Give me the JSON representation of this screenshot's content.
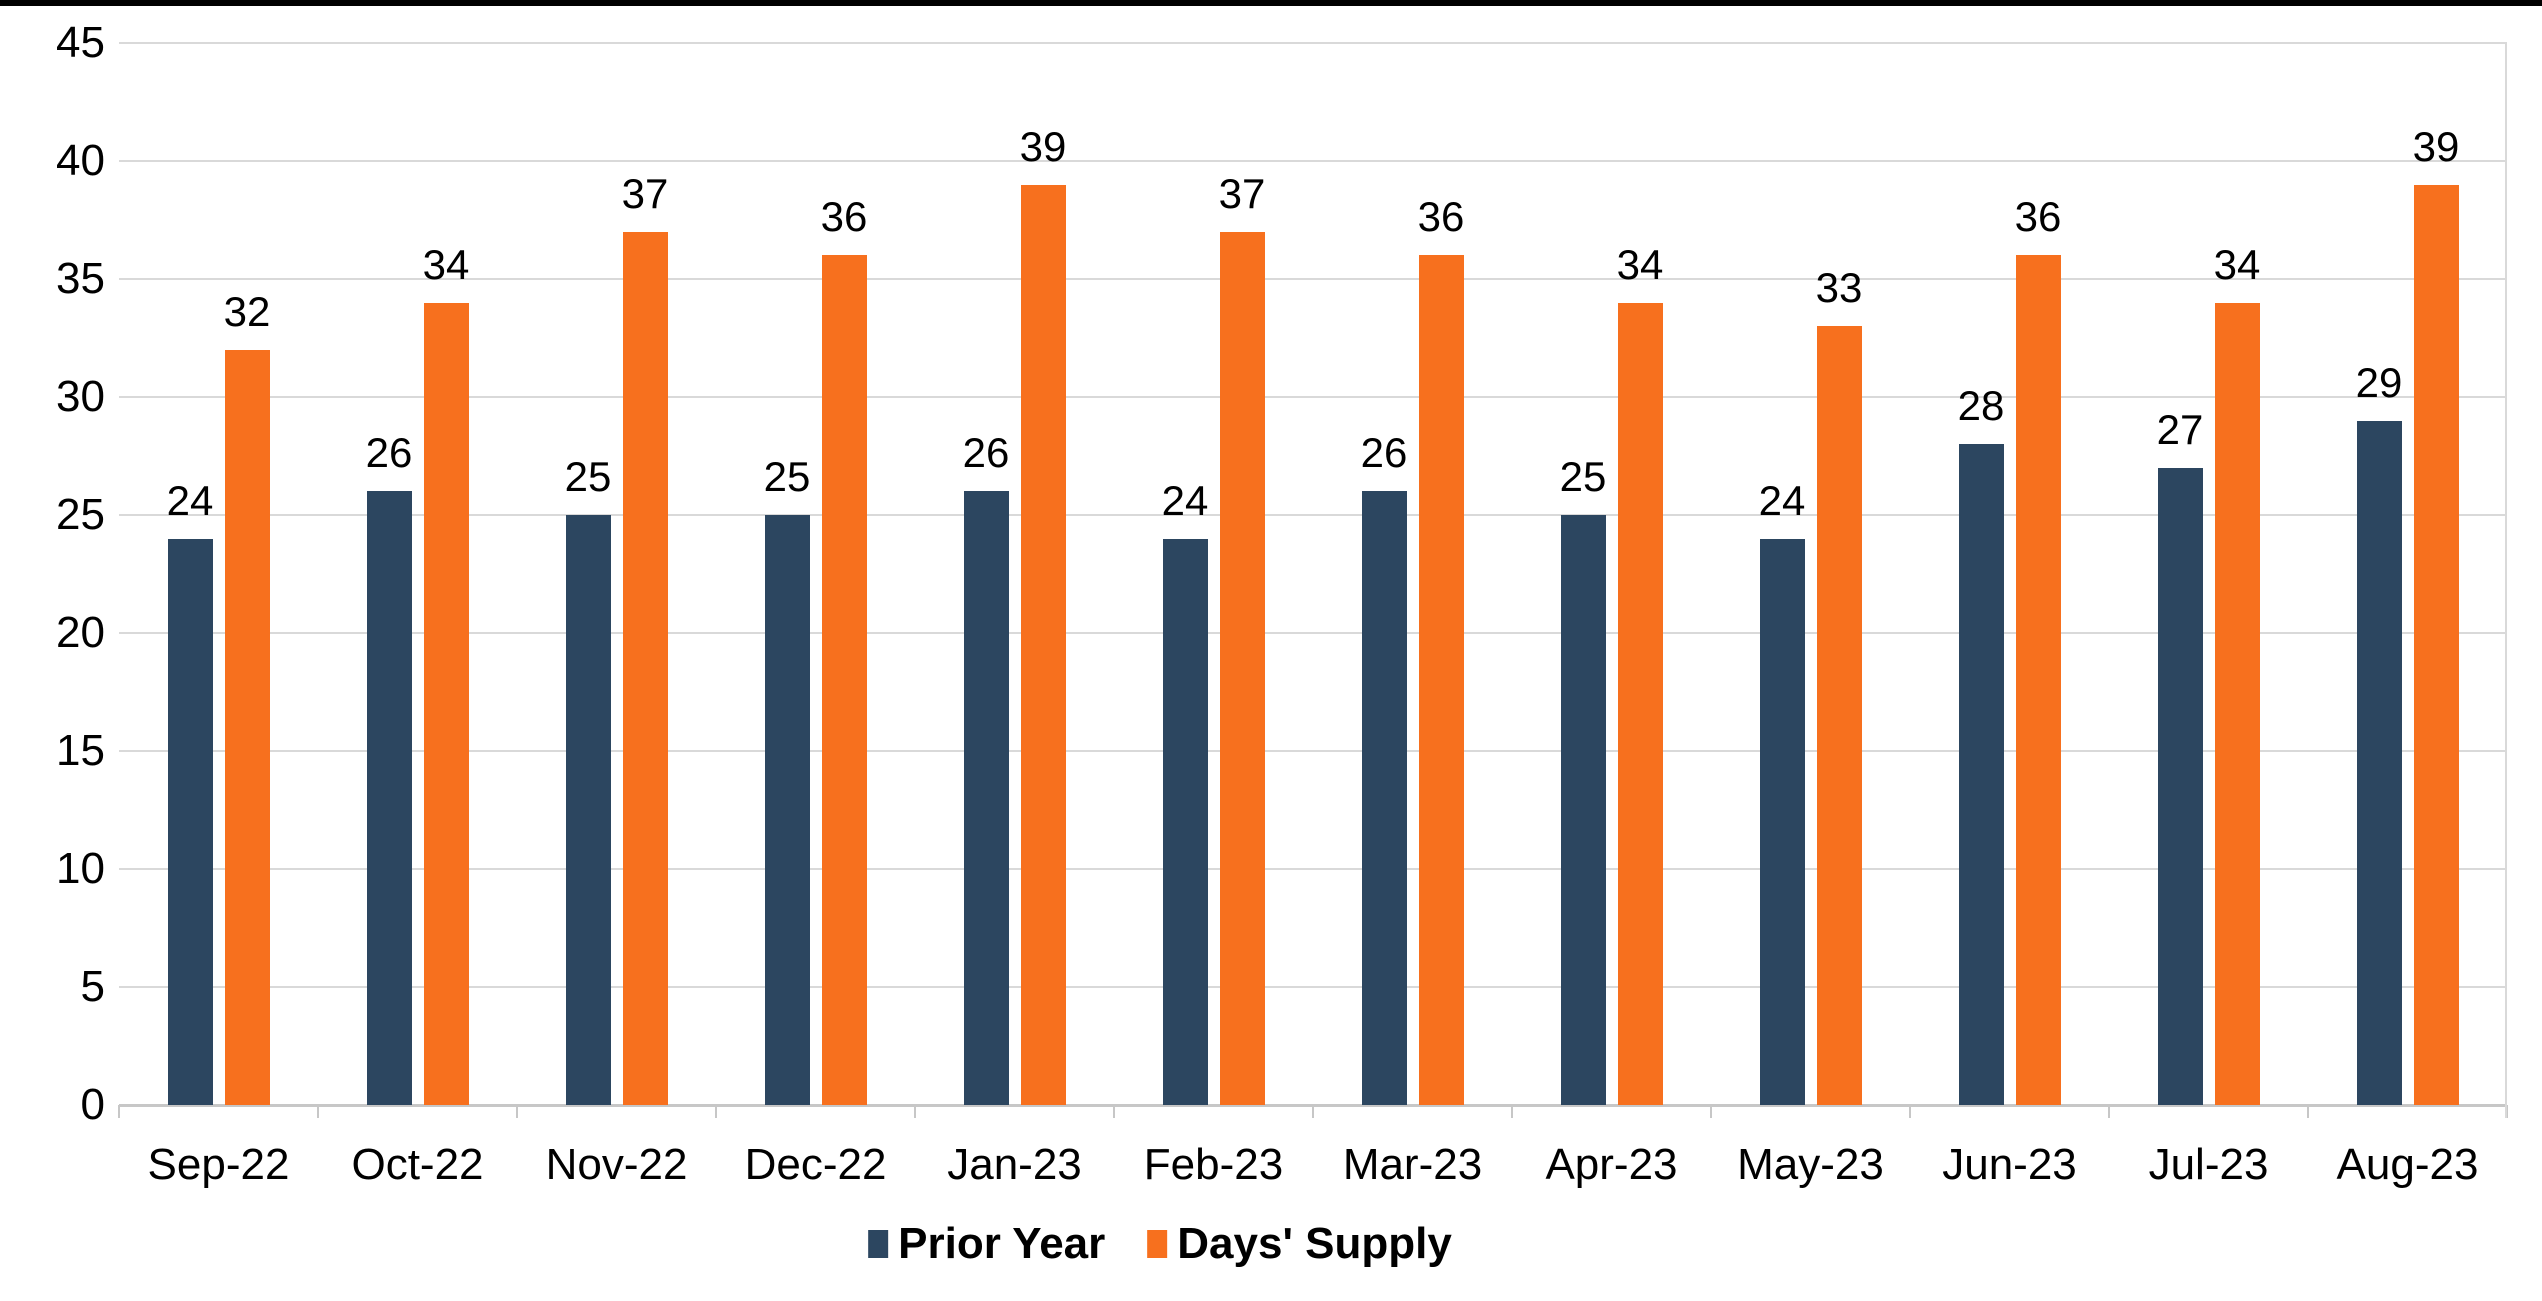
{
  "chart_data": {
    "type": "bar",
    "title": "",
    "categories": [
      "Sep-22",
      "Oct-22",
      "Nov-22",
      "Dec-22",
      "Jan-23",
      "Feb-23",
      "Mar-23",
      "Apr-23",
      "May-23",
      "Jun-23",
      "Jul-23",
      "Aug-23"
    ],
    "series": [
      {
        "name": "Prior Year",
        "color": "#2C4660",
        "values": [
          24,
          26,
          25,
          25,
          26,
          24,
          26,
          25,
          24,
          28,
          27,
          29
        ]
      },
      {
        "name": "Days' Supply",
        "color": "#F7701E",
        "values": [
          32,
          34,
          37,
          36,
          39,
          37,
          36,
          34,
          33,
          36,
          34,
          39
        ]
      }
    ],
    "ylim": [
      0,
      45
    ],
    "yticks": [
      0,
      5,
      10,
      15,
      20,
      25,
      30,
      35,
      40,
      45
    ],
    "grid": true,
    "data_labels": true,
    "legend_position": "bottom"
  },
  "colors": {
    "background": "#FFFFFF",
    "gridline": "#D9D9D9",
    "axis_line": "#C7C7C7",
    "text": "#000000",
    "top_border": "#000000"
  }
}
